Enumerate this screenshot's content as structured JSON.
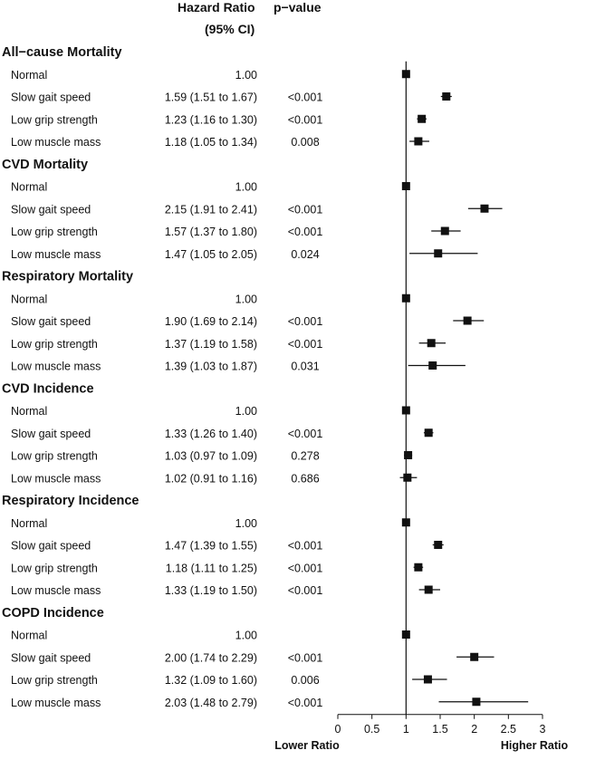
{
  "header": {
    "hazard_ratio": "Hazard Ratio",
    "ci": "(95% CI)",
    "pvalue": "p−value"
  },
  "chart_data": {
    "type": "forest",
    "xlim": [
      0,
      3
    ],
    "reference_line": 1,
    "x_ticks": [
      0,
      0.5,
      1,
      1.5,
      2,
      2.5,
      3
    ],
    "x_tick_labels": [
      "0",
      "0.5",
      "1",
      "1.5",
      "2",
      "2.5",
      "3"
    ],
    "left_label": "Lower Ratio",
    "right_label": "Higher Ratio",
    "groups": [
      {
        "title": "All−cause Mortality",
        "rows": [
          {
            "label": "Normal",
            "text": "1.00",
            "p": "",
            "hr": 1.0,
            "lo": 1.0,
            "hi": 1.0
          },
          {
            "label": "Slow gait speed",
            "text": "1.59 (1.51 to 1.67)",
            "p": "<0.001",
            "hr": 1.59,
            "lo": 1.51,
            "hi": 1.67
          },
          {
            "label": "Low grip strength",
            "text": "1.23 (1.16 to 1.30)",
            "p": "<0.001",
            "hr": 1.23,
            "lo": 1.16,
            "hi": 1.3
          },
          {
            "label": "Low muscle mass",
            "text": "1.18 (1.05 to 1.34)",
            "p": "0.008",
            "hr": 1.18,
            "lo": 1.05,
            "hi": 1.34
          }
        ]
      },
      {
        "title": "CVD Mortality",
        "rows": [
          {
            "label": "Normal",
            "text": "1.00",
            "p": "",
            "hr": 1.0,
            "lo": 1.0,
            "hi": 1.0
          },
          {
            "label": "Slow gait speed",
            "text": "2.15 (1.91 to 2.41)",
            "p": "<0.001",
            "hr": 2.15,
            "lo": 1.91,
            "hi": 2.41
          },
          {
            "label": "Low grip strength",
            "text": "1.57 (1.37 to 1.80)",
            "p": "<0.001",
            "hr": 1.57,
            "lo": 1.37,
            "hi": 1.8
          },
          {
            "label": "Low muscle mass",
            "text": "1.47 (1.05 to 2.05)",
            "p": "0.024",
            "hr": 1.47,
            "lo": 1.05,
            "hi": 2.05
          }
        ]
      },
      {
        "title": "Respiratory Mortality",
        "rows": [
          {
            "label": "Normal",
            "text": "1.00",
            "p": "",
            "hr": 1.0,
            "lo": 1.0,
            "hi": 1.0
          },
          {
            "label": "Slow gait speed",
            "text": "1.90 (1.69 to 2.14)",
            "p": "<0.001",
            "hr": 1.9,
            "lo": 1.69,
            "hi": 2.14
          },
          {
            "label": "Low grip strength",
            "text": "1.37 (1.19 to 1.58)",
            "p": "<0.001",
            "hr": 1.37,
            "lo": 1.19,
            "hi": 1.58
          },
          {
            "label": "Low muscle mass",
            "text": "1.39 (1.03 to 1.87)",
            "p": "0.031",
            "hr": 1.39,
            "lo": 1.03,
            "hi": 1.87
          }
        ]
      },
      {
        "title": "CVD Incidence",
        "rows": [
          {
            "label": "Normal",
            "text": "1.00",
            "p": "",
            "hr": 1.0,
            "lo": 1.0,
            "hi": 1.0
          },
          {
            "label": "Slow gait speed",
            "text": "1.33 (1.26 to 1.40)",
            "p": "<0.001",
            "hr": 1.33,
            "lo": 1.26,
            "hi": 1.4
          },
          {
            "label": "Low grip strength",
            "text": "1.03 (0.97 to 1.09)",
            "p": "0.278",
            "hr": 1.03,
            "lo": 0.97,
            "hi": 1.09
          },
          {
            "label": "Low muscle mass",
            "text": "1.02 (0.91 to 1.16)",
            "p": "0.686",
            "hr": 1.02,
            "lo": 0.91,
            "hi": 1.16
          }
        ]
      },
      {
        "title": "Respiratory Incidence",
        "rows": [
          {
            "label": "Normal",
            "text": "1.00",
            "p": "",
            "hr": 1.0,
            "lo": 1.0,
            "hi": 1.0
          },
          {
            "label": "Slow gait speed",
            "text": "1.47 (1.39 to 1.55)",
            "p": "<0.001",
            "hr": 1.47,
            "lo": 1.39,
            "hi": 1.55
          },
          {
            "label": "Low grip strength",
            "text": "1.18 (1.11 to 1.25)",
            "p": "<0.001",
            "hr": 1.18,
            "lo": 1.11,
            "hi": 1.25
          },
          {
            "label": "Low muscle mass",
            "text": "1.33 (1.19 to 1.50)",
            "p": "<0.001",
            "hr": 1.33,
            "lo": 1.19,
            "hi": 1.5
          }
        ]
      },
      {
        "title": "COPD Incidence",
        "rows": [
          {
            "label": "Normal",
            "text": "1.00",
            "p": "",
            "hr": 1.0,
            "lo": 1.0,
            "hi": 1.0
          },
          {
            "label": "Slow gait speed",
            "text": "2.00 (1.74 to 2.29)",
            "p": "<0.001",
            "hr": 2.0,
            "lo": 1.74,
            "hi": 2.29
          },
          {
            "label": "Low grip strength",
            "text": "1.32 (1.09 to 1.60)",
            "p": "0.006",
            "hr": 1.32,
            "lo": 1.09,
            "hi": 1.6
          },
          {
            "label": "Low muscle mass",
            "text": "2.03 (1.48 to 2.79)",
            "p": "<0.001",
            "hr": 2.03,
            "lo": 1.48,
            "hi": 2.79
          }
        ]
      }
    ]
  }
}
